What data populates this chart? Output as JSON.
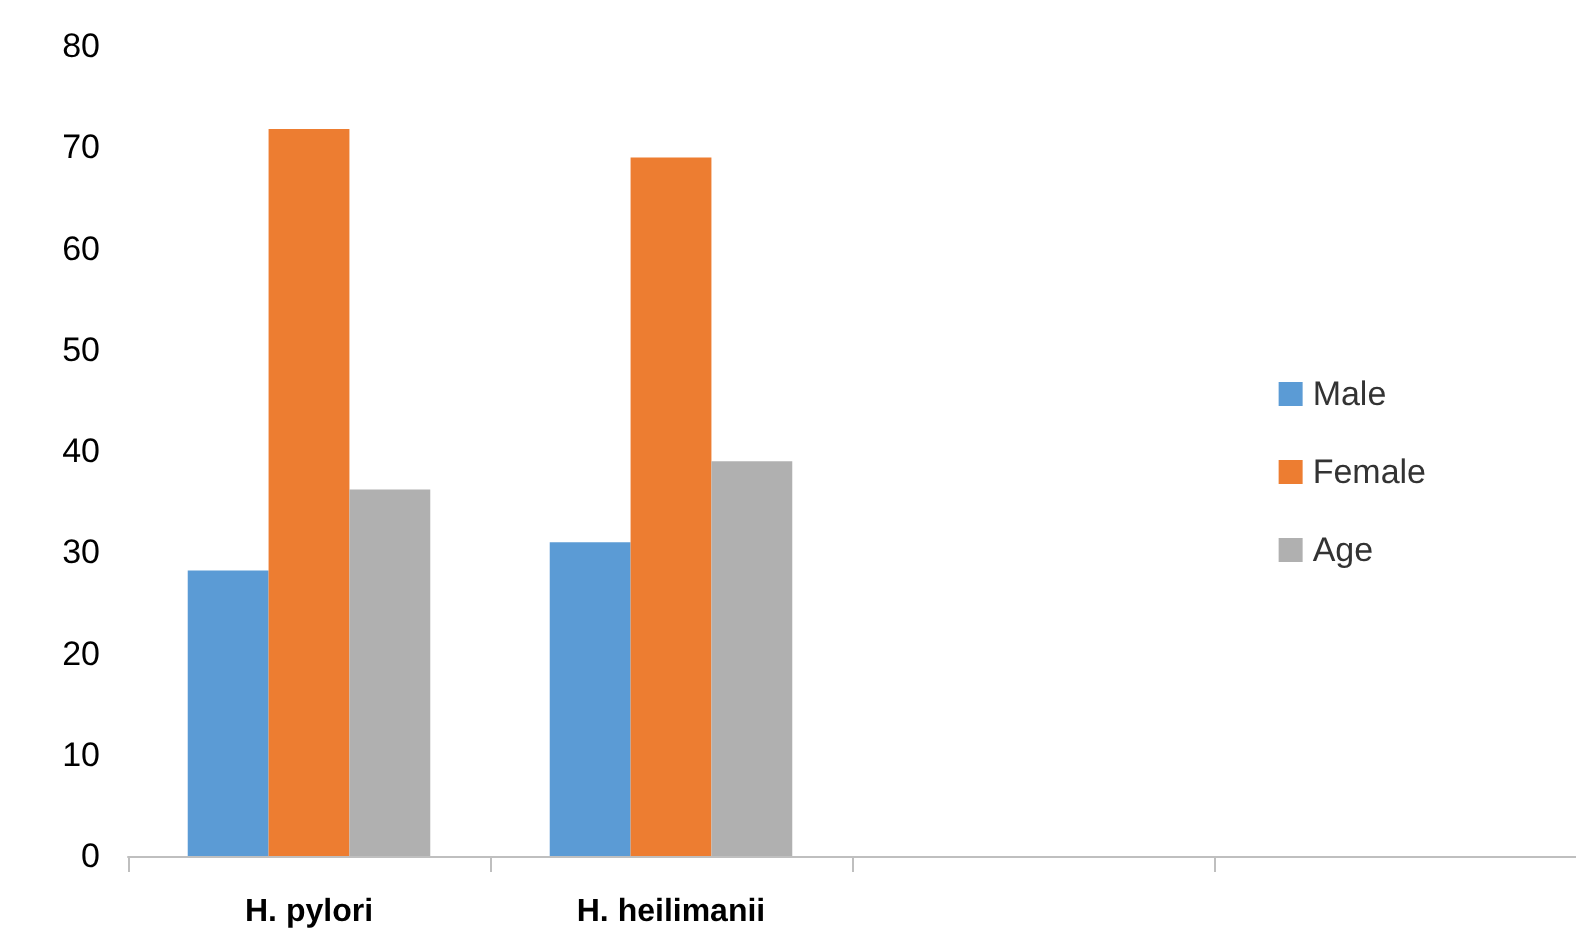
{
  "chart_data": {
    "type": "bar",
    "categories": [
      "H. pylori",
      "H. heilimanii",
      null,
      null
    ],
    "series": [
      {
        "name": "Male",
        "color": "#5b9bd5",
        "values": [
          28.2,
          31,
          null,
          null
        ]
      },
      {
        "name": "Female",
        "color": "#ed7d31",
        "values": [
          71.8,
          69,
          null,
          null
        ]
      },
      {
        "name": "Age",
        "color": "#b0b0b0",
        "values": [
          36.2,
          39,
          null,
          null
        ]
      }
    ],
    "ylim": [
      0,
      80
    ],
    "yticks": [
      0,
      10,
      20,
      30,
      40,
      50,
      60,
      70,
      80
    ],
    "grid": false,
    "legend": "right"
  }
}
